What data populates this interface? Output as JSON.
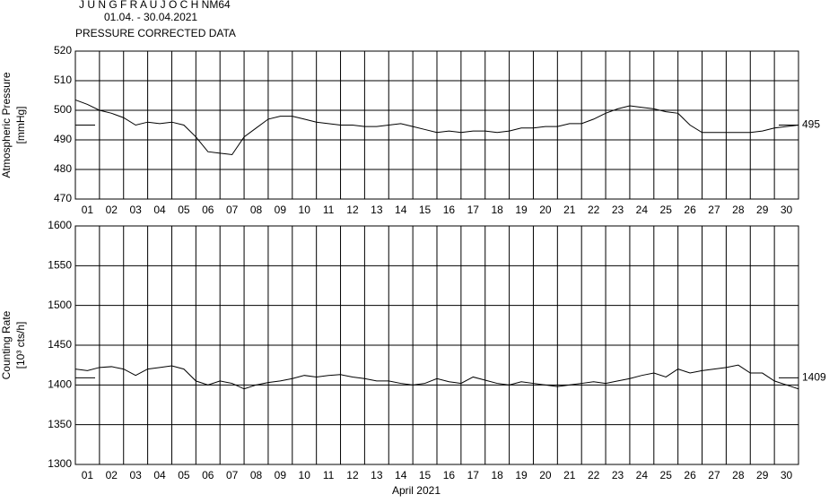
{
  "chart_data": [
    {
      "type": "line",
      "title": "J U N G F R A U J O C H  NM64",
      "subtitle": "01.04. - 30.04.2021",
      "annotation": "PRESSURE CORRECTED DATA",
      "ylabel": "Atmospheric Pressure",
      "yunit": "[mmHg]",
      "xlim": [
        0,
        30
      ],
      "ylim": [
        470,
        520
      ],
      "yticks": [
        470,
        480,
        490,
        500,
        510,
        520
      ],
      "grid": true,
      "xticks": [
        {
          "value": 0.5,
          "label": "01"
        },
        {
          "value": 1.5,
          "label": "02"
        },
        {
          "value": 2.5,
          "label": "03"
        },
        {
          "value": 3.5,
          "label": "04"
        },
        {
          "value": 4.5,
          "label": "05"
        },
        {
          "value": 5.5,
          "label": "06"
        },
        {
          "value": 6.5,
          "label": "07"
        },
        {
          "value": 7.5,
          "label": "08"
        },
        {
          "value": 8.5,
          "label": "09"
        },
        {
          "value": 9.5,
          "label": "10"
        },
        {
          "value": 10.5,
          "label": "11"
        },
        {
          "value": 11.5,
          "label": "12"
        },
        {
          "value": 12.5,
          "label": "13"
        },
        {
          "value": 13.5,
          "label": "14"
        },
        {
          "value": 14.5,
          "label": "15"
        },
        {
          "value": 15.5,
          "label": "16"
        },
        {
          "value": 16.5,
          "label": "17"
        },
        {
          "value": 17.5,
          "label": "18"
        },
        {
          "value": 18.5,
          "label": "19"
        },
        {
          "value": 19.5,
          "label": "20"
        },
        {
          "value": 20.5,
          "label": "21"
        },
        {
          "value": 21.5,
          "label": "22"
        },
        {
          "value": 22.5,
          "label": "23"
        },
        {
          "value": 23.5,
          "label": "24"
        },
        {
          "value": 24.5,
          "label": "25"
        },
        {
          "value": 25.5,
          "label": "26"
        },
        {
          "value": 26.5,
          "label": "27"
        },
        {
          "value": 27.5,
          "label": "28"
        },
        {
          "value": 28.5,
          "label": "29"
        },
        {
          "value": 29.5,
          "label": "30"
        }
      ],
      "reference": 495,
      "color": "#000000",
      "x": [
        0,
        0.5,
        1,
        1.5,
        2,
        2.5,
        3,
        3.5,
        4,
        4.5,
        5,
        5.5,
        6,
        6.5,
        7,
        7.5,
        8,
        8.5,
        9,
        9.5,
        10,
        10.5,
        11,
        11.5,
        12,
        12.5,
        13,
        13.5,
        14,
        14.5,
        15,
        15.5,
        16,
        16.5,
        17,
        17.5,
        18,
        18.5,
        19,
        19.5,
        20,
        20.5,
        21,
        21.5,
        22,
        22.5,
        23,
        23.5,
        24,
        24.5,
        25,
        25.5,
        26,
        26.5,
        27,
        27.5,
        28,
        28.5,
        29,
        29.5,
        30
      ],
      "values": [
        503.5,
        502,
        500,
        499,
        497.5,
        495,
        496,
        495.5,
        496,
        495,
        491,
        486,
        485.5,
        485,
        491,
        494,
        497,
        498,
        498,
        497,
        496,
        495.5,
        495,
        495,
        494.5,
        494.5,
        495,
        495.5,
        494.5,
        493.5,
        492.5,
        493,
        492.5,
        493,
        493,
        492.5,
        493,
        494,
        494,
        494.5,
        494.5,
        495.5,
        495.5,
        497,
        499,
        500.5,
        501.5,
        501,
        500.5,
        499.5,
        499,
        495,
        492.5,
        492.5,
        492.5,
        492.5,
        492.5,
        493,
        494,
        494.5,
        495
      ]
    },
    {
      "type": "line",
      "ylabel": "Counting Rate",
      "yunit": "[10³ cts/h]",
      "xlabel": "April 2021",
      "xlim": [
        0,
        30
      ],
      "ylim": [
        1300,
        1600
      ],
      "yticks": [
        1300,
        1350,
        1400,
        1450,
        1500,
        1550,
        1600
      ],
      "grid": true,
      "xticks": [
        {
          "value": 0.5,
          "label": "01"
        },
        {
          "value": 1.5,
          "label": "02"
        },
        {
          "value": 2.5,
          "label": "03"
        },
        {
          "value": 3.5,
          "label": "04"
        },
        {
          "value": 4.5,
          "label": "05"
        },
        {
          "value": 5.5,
          "label": "06"
        },
        {
          "value": 6.5,
          "label": "07"
        },
        {
          "value": 7.5,
          "label": "08"
        },
        {
          "value": 8.5,
          "label": "09"
        },
        {
          "value": 9.5,
          "label": "10"
        },
        {
          "value": 10.5,
          "label": "11"
        },
        {
          "value": 11.5,
          "label": "12"
        },
        {
          "value": 12.5,
          "label": "13"
        },
        {
          "value": 13.5,
          "label": "14"
        },
        {
          "value": 14.5,
          "label": "15"
        },
        {
          "value": 15.5,
          "label": "16"
        },
        {
          "value": 16.5,
          "label": "17"
        },
        {
          "value": 17.5,
          "label": "18"
        },
        {
          "value": 18.5,
          "label": "19"
        },
        {
          "value": 19.5,
          "label": "20"
        },
        {
          "value": 20.5,
          "label": "21"
        },
        {
          "value": 21.5,
          "label": "22"
        },
        {
          "value": 22.5,
          "label": "23"
        },
        {
          "value": 23.5,
          "label": "24"
        },
        {
          "value": 24.5,
          "label": "25"
        },
        {
          "value": 25.5,
          "label": "26"
        },
        {
          "value": 26.5,
          "label": "27"
        },
        {
          "value": 27.5,
          "label": "28"
        },
        {
          "value": 28.5,
          "label": "29"
        },
        {
          "value": 29.5,
          "label": "30"
        }
      ],
      "reference": 1409,
      "color": "#000000",
      "x": [
        0,
        0.5,
        1,
        1.5,
        2,
        2.5,
        3,
        3.5,
        4,
        4.5,
        5,
        5.5,
        6,
        6.5,
        7,
        7.5,
        8,
        8.5,
        9,
        9.5,
        10,
        10.5,
        11,
        11.5,
        12,
        12.5,
        13,
        13.5,
        14,
        14.5,
        15,
        15.5,
        16,
        16.5,
        17,
        17.5,
        18,
        18.5,
        19,
        19.5,
        20,
        20.5,
        21,
        21.5,
        22,
        22.5,
        23,
        23.5,
        24,
        24.5,
        25,
        25.5,
        26,
        26.5,
        27,
        27.5,
        28,
        28.5,
        29,
        29.5,
        30
      ],
      "values": [
        1420,
        1418,
        1422,
        1423,
        1420,
        1412,
        1420,
        1422,
        1424,
        1420,
        1405,
        1400,
        1405,
        1402,
        1395,
        1400,
        1403,
        1405,
        1408,
        1412,
        1410,
        1412,
        1413,
        1410,
        1408,
        1405,
        1405,
        1402,
        1400,
        1402,
        1408,
        1404,
        1402,
        1410,
        1406,
        1402,
        1400,
        1404,
        1402,
        1400,
        1398,
        1400,
        1402,
        1404,
        1402,
        1405,
        1408,
        1412,
        1415,
        1410,
        1420,
        1415,
        1418,
        1420,
        1422,
        1425,
        1415,
        1415,
        1405,
        1400,
        1395
      ]
    }
  ]
}
